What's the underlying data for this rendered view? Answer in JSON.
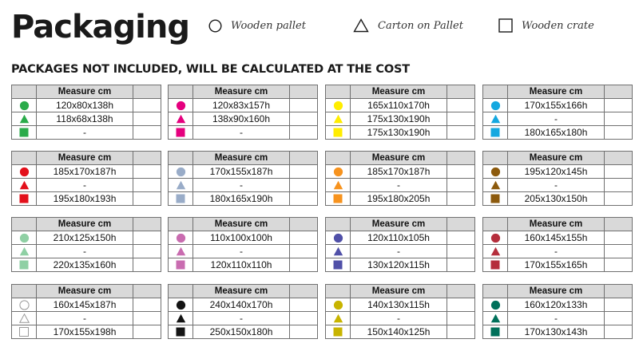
{
  "title": "Packaging",
  "legend": {
    "pallet": "Wooden pallet",
    "carton": "Carton on Pallet",
    "crate": "Wooden crate"
  },
  "subtitle": "PACKAGES NOT INCLUDED, WILL BE CALCULATED AT THE COST",
  "table_header": "Measure cm",
  "tables": [
    {
      "color": "#2aab4a",
      "rows": [
        "120x80x138h",
        "118x68x138h",
        "-"
      ]
    },
    {
      "color": "#e5007e",
      "rows": [
        "120x83x157h",
        "138x90x160h",
        "-"
      ]
    },
    {
      "color": "#ffed00",
      "rows": [
        "165x110x170h",
        "175x130x190h",
        "175x130x190h"
      ]
    },
    {
      "color": "#14a8e0",
      "rows": [
        "170x155x166h",
        "-",
        "180x165x180h"
      ]
    },
    {
      "color": "#e3101b",
      "rows": [
        "185x170x187h",
        "-",
        "195x180x193h"
      ]
    },
    {
      "color": "#99acc8",
      "rows": [
        "170x155x187h",
        "-",
        "180x165x190h"
      ]
    },
    {
      "color": "#f7931e",
      "rows": [
        "185x170x187h",
        "-",
        "195x180x205h"
      ]
    },
    {
      "color": "#8c5a0d",
      "rows": [
        "195x120x145h",
        "-",
        "205x130x150h"
      ]
    },
    {
      "color": "#8fd0a4",
      "rows": [
        "210x125x150h",
        "-",
        "220x135x160h"
      ]
    },
    {
      "color": "#c96cb0",
      "rows": [
        "110x100x100h",
        "-",
        "120x110x110h"
      ]
    },
    {
      "color": "#5050a8",
      "rows": [
        "120x110x105h",
        "-",
        "130x120x115h"
      ]
    },
    {
      "color": "#b52e3c",
      "rows": [
        "160x145x155h",
        "-",
        "170x155x165h"
      ]
    },
    {
      "color": "#ffffff",
      "rows": [
        "160x145x187h",
        "-",
        "170x155x198h"
      ]
    },
    {
      "color": "#141414",
      "rows": [
        "240x140x170h",
        "-",
        "250x150x180h"
      ]
    },
    {
      "color": "#c8b400",
      "rows": [
        "140x130x115h",
        "-",
        "150x140x125h"
      ]
    },
    {
      "color": "#00705a",
      "rows": [
        "160x120x133h",
        "-",
        "170x130x143h"
      ]
    }
  ]
}
